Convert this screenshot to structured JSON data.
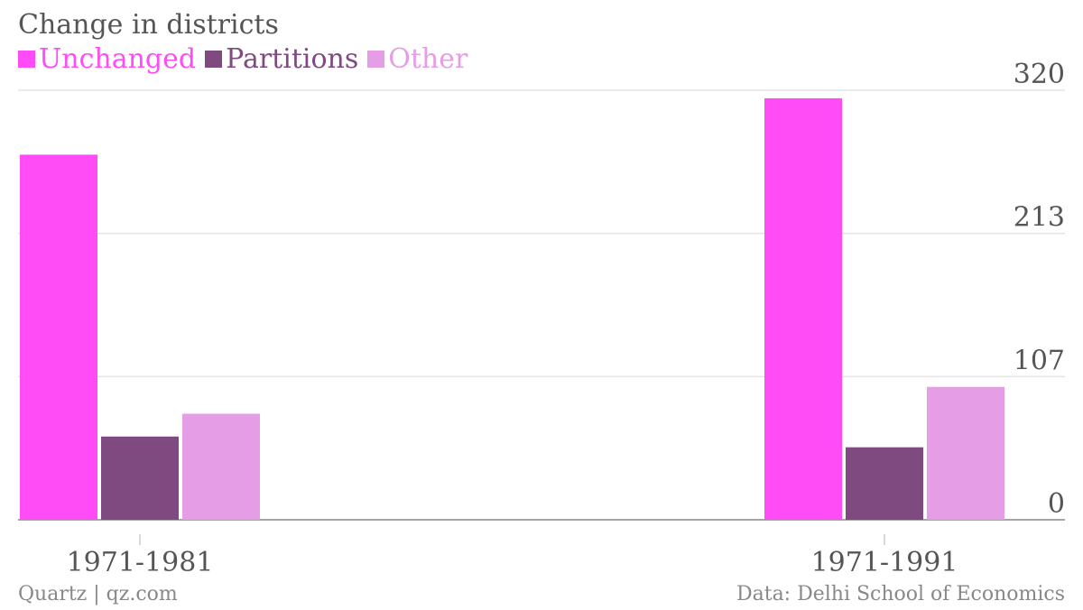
{
  "chart_data": {
    "type": "bar",
    "title": "Change in districts",
    "categories": [
      "1971-1981",
      "1971-1991"
    ],
    "series": [
      {
        "name": "Unchanged",
        "color": "#ff4cf7",
        "values": [
          272,
          314
        ]
      },
      {
        "name": "Partitions",
        "color": "#7f4a7f",
        "values": [
          62,
          54
        ]
      },
      {
        "name": "Other",
        "color": "#e59ee5",
        "values": [
          79,
          99
        ]
      }
    ],
    "yticks": [
      "0",
      "107",
      "213",
      "320"
    ],
    "ylim": [
      0,
      320
    ],
    "grid": true,
    "legend_position": "top-left"
  },
  "footer": {
    "source_left": "Quartz | qz.com",
    "source_right": "Data: Delhi School of Economics"
  }
}
